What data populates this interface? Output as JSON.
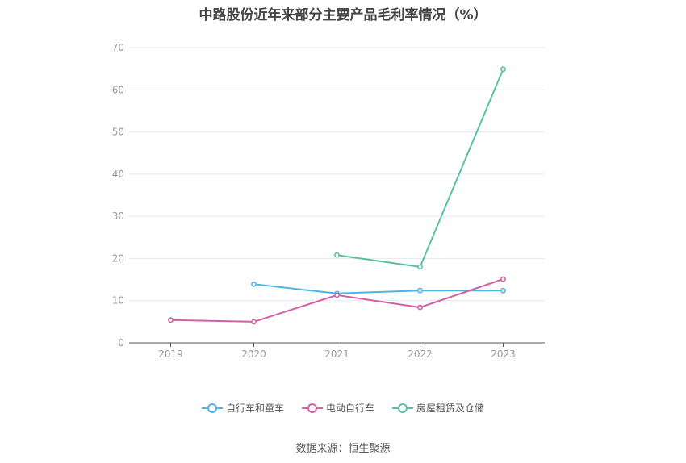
{
  "chart_data": {
    "type": "line",
    "title": "中路股份近年来部分主要产品毛利率情况（%）",
    "categories": [
      "2019",
      "2020",
      "2021",
      "2022",
      "2023"
    ],
    "ylim": [
      0,
      70
    ],
    "yticks": [
      0,
      10,
      20,
      30,
      40,
      50,
      60,
      70
    ],
    "grid": true,
    "legend_position": "bottom",
    "series": [
      {
        "name": "自行车和童车",
        "color": "#4fb3e4",
        "values": [
          null,
          13.9,
          11.7,
          12.4,
          12.4
        ]
      },
      {
        "name": "电动自行车",
        "color": "#d45fa6",
        "values": [
          5.4,
          5.0,
          11.3,
          8.4,
          15.1
        ]
      },
      {
        "name": "房屋租赁及仓储",
        "color": "#5bbfa3",
        "values": [
          null,
          null,
          20.8,
          18.0,
          64.9
        ]
      }
    ]
  },
  "source": "数据来源：恒生聚源"
}
